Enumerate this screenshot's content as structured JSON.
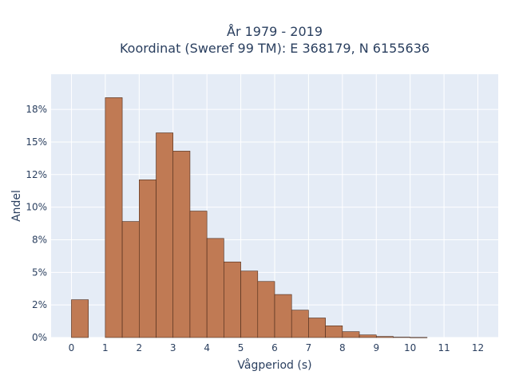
{
  "chart_data": {
    "type": "bar",
    "title_line1": "År 1979 - 2019",
    "title_line2": "Koordinat (Sweref 99 TM): E 368179, N 6155636",
    "xlabel": "Vågperiod (s)",
    "ylabel": "Andel",
    "bin_width": 0.5,
    "bins": [
      {
        "x0": 0.0,
        "value": 2.9
      },
      {
        "x0": 0.5,
        "value": 0.0
      },
      {
        "x0": 1.0,
        "value": 18.4
      },
      {
        "x0": 1.5,
        "value": 8.9
      },
      {
        "x0": 2.0,
        "value": 12.1
      },
      {
        "x0": 2.5,
        "value": 15.7
      },
      {
        "x0": 3.0,
        "value": 14.3
      },
      {
        "x0": 3.5,
        "value": 9.7
      },
      {
        "x0": 4.0,
        "value": 7.6
      },
      {
        "x0": 4.5,
        "value": 5.8
      },
      {
        "x0": 5.0,
        "value": 5.1
      },
      {
        "x0": 5.5,
        "value": 4.3
      },
      {
        "x0": 6.0,
        "value": 3.3
      },
      {
        "x0": 6.5,
        "value": 2.1
      },
      {
        "x0": 7.0,
        "value": 1.5
      },
      {
        "x0": 7.5,
        "value": 0.9
      },
      {
        "x0": 8.0,
        "value": 0.45
      },
      {
        "x0": 8.5,
        "value": 0.2
      },
      {
        "x0": 9.0,
        "value": 0.08
      },
      {
        "x0": 9.5,
        "value": 0.03
      },
      {
        "x0": 10.0,
        "value": 0.01
      },
      {
        "x0": 10.5,
        "value": 0.0
      },
      {
        "x0": 11.0,
        "value": 0.0
      },
      {
        "x0": 11.5,
        "value": 0.0
      }
    ],
    "xlim": [
      -0.6,
      12.6
    ],
    "ylim": [
      0,
      20.2
    ],
    "x_ticks": [
      0,
      1,
      2,
      3,
      4,
      5,
      6,
      7,
      8,
      9,
      10,
      11,
      12
    ],
    "x_tick_labels": [
      "0",
      "1",
      "2",
      "3",
      "4",
      "5",
      "6",
      "7",
      "8",
      "9",
      "10",
      "11",
      "12"
    ],
    "y_ticks": [
      0,
      2.5,
      5,
      7.5,
      10,
      12.5,
      15,
      17.5
    ],
    "y_tick_labels": [
      "0%",
      "2%",
      "5%",
      "8%",
      "10%",
      "12%",
      "15%",
      "18%"
    ],
    "grid": true,
    "colors": {
      "bar_fill": "#c07a54",
      "bar_stroke": "#4a2a1a",
      "plot_background": "#e5ecf6",
      "grid": "#ffffff",
      "text": "#2a3f5f"
    }
  }
}
